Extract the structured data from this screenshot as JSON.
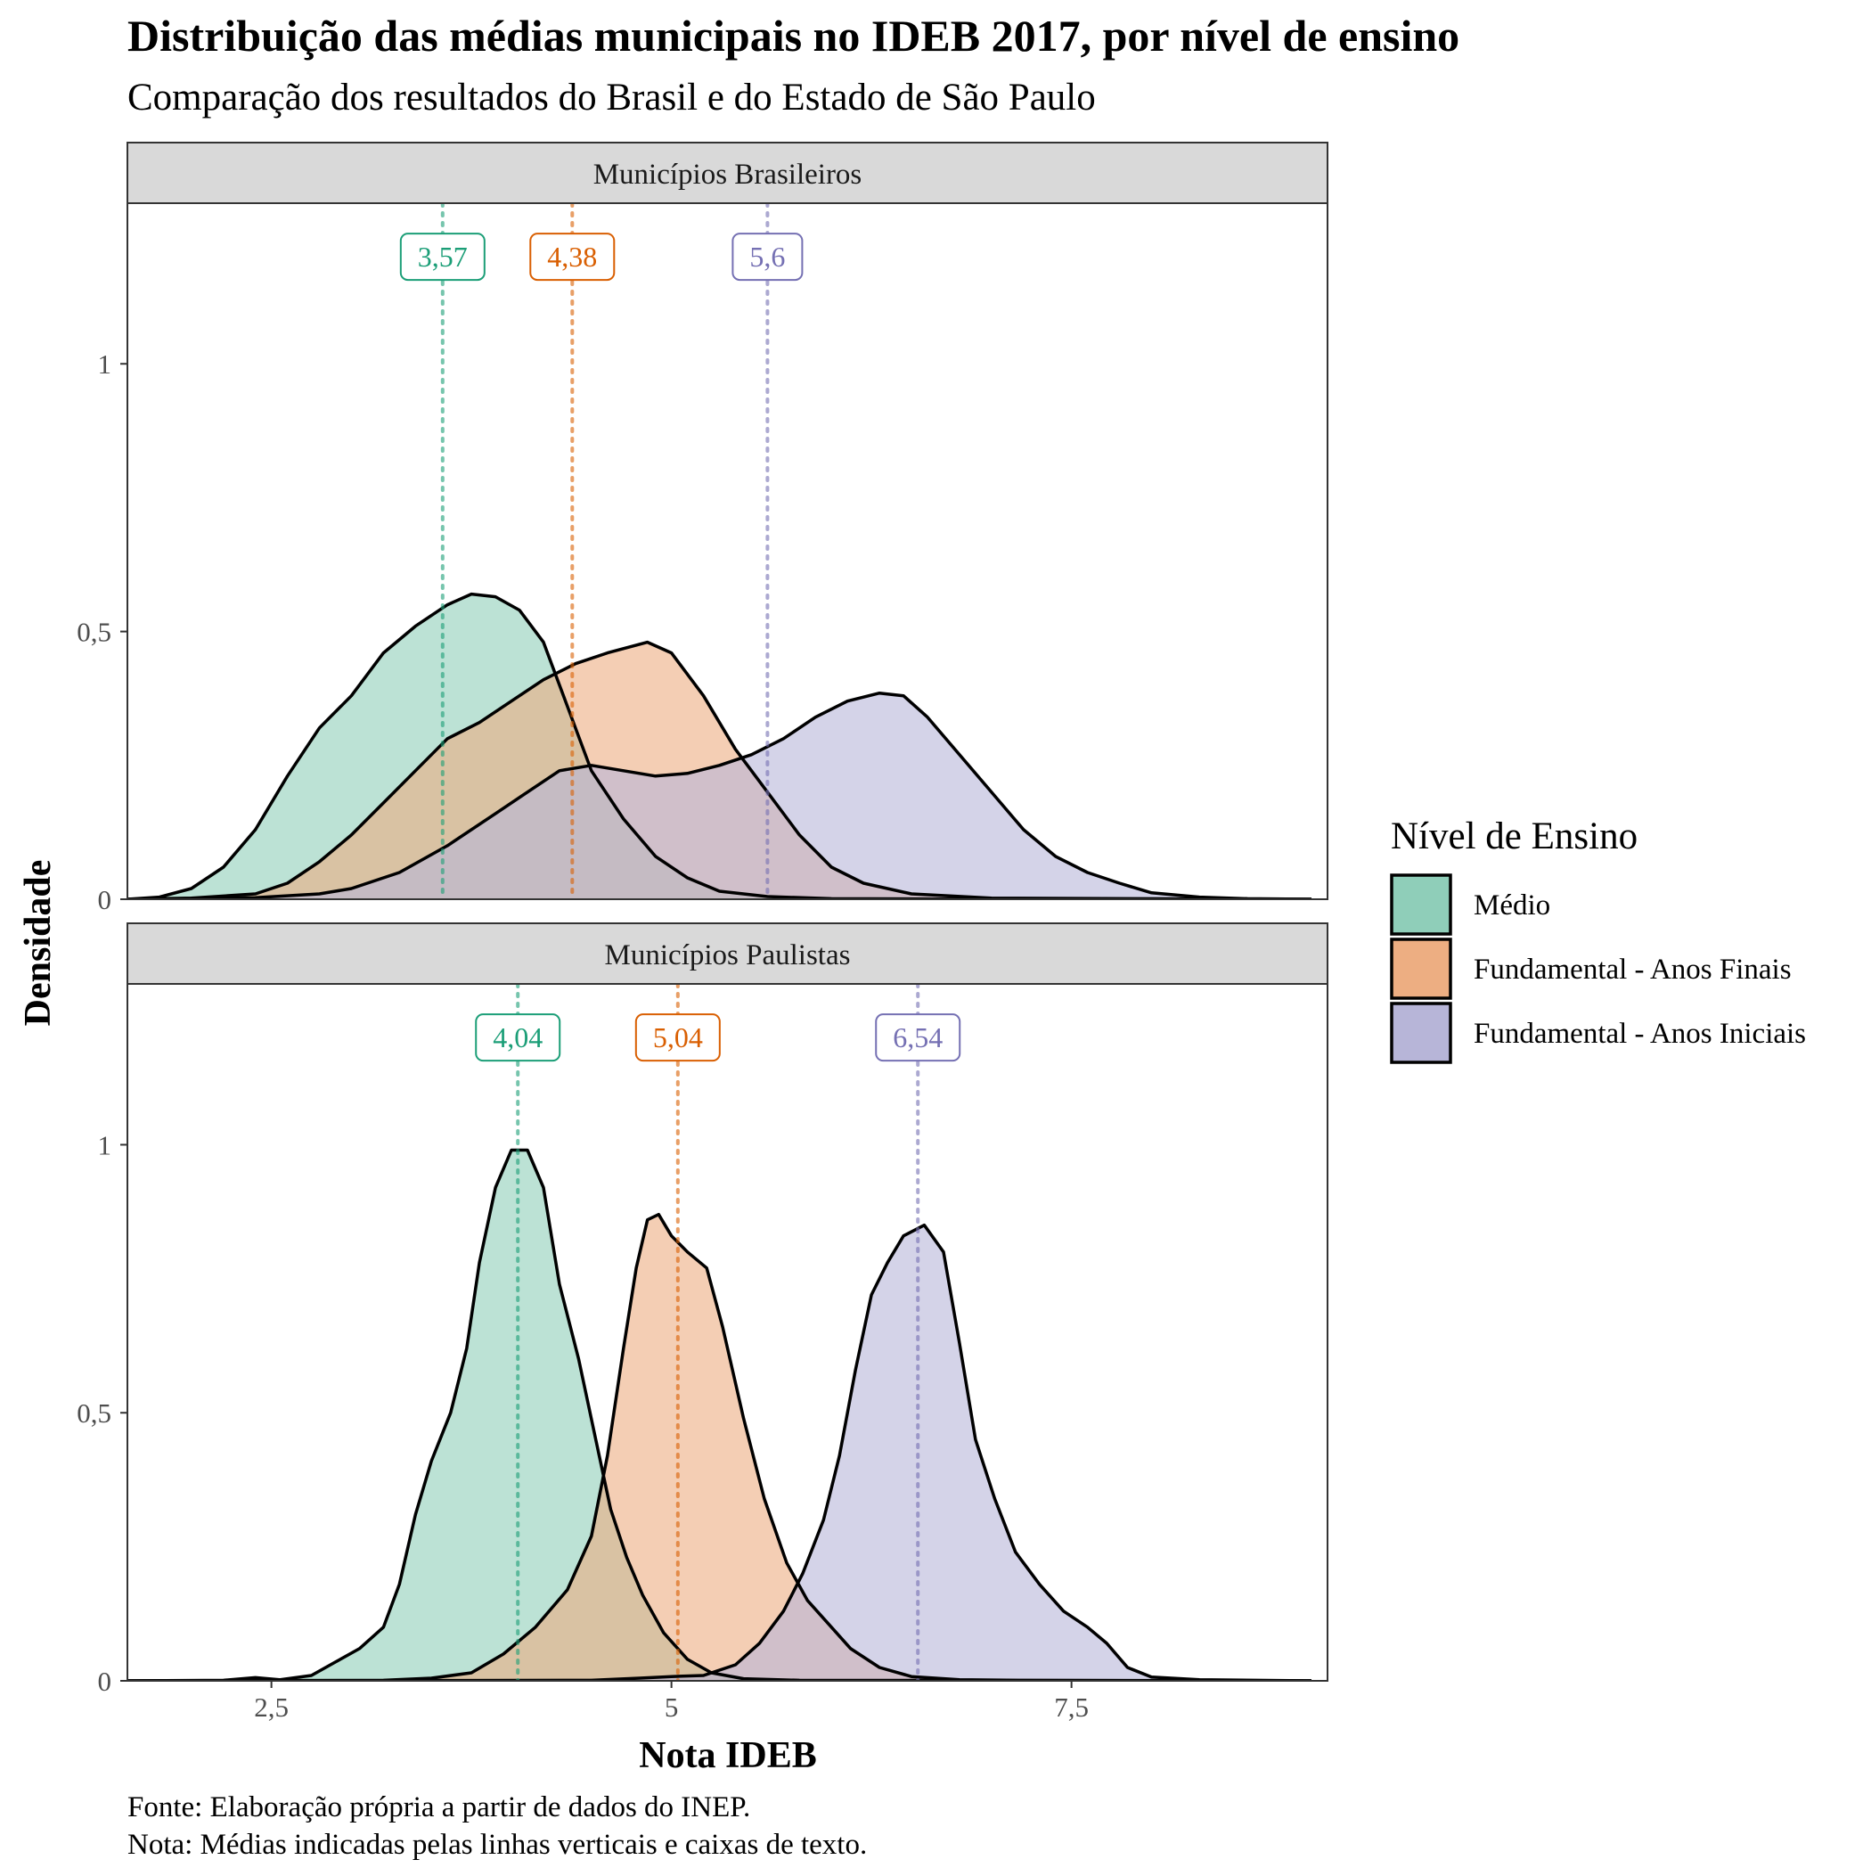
{
  "title": "Distribuição das médias municipais no IDEB 2017, por nível de ensino",
  "subtitle": "Comparação dos resultados do Brasil e do Estado de São Paulo",
  "xlabel": "Nota IDEB",
  "ylabel": "Densidade",
  "caption_lines": [
    "Fonte: Elaboração própria a partir de dados do INEP.",
    "Nota: Médias indicadas pelas linhas verticais e caixas de texto."
  ],
  "legend": {
    "title": "Nível de Ensino",
    "items": [
      {
        "key": "medio",
        "label": "Médio",
        "fill": "#8FCEB9"
      },
      {
        "key": "finais",
        "label": "Fundamental - Anos Finais",
        "fill": "#EDAE82"
      },
      {
        "key": "iniciais",
        "label": "Fundamental - Anos Iniciais",
        "fill": "#B7B5D8"
      }
    ]
  },
  "colors": {
    "medio": "#1B9E77",
    "finais": "#D95F02",
    "iniciais": "#7570B3",
    "overlap_medio_finais": "#B29B5F",
    "overlap_finais_iniciais": "#AF939D",
    "overlap_medio_iniciais": "#8D8C8A",
    "overlap_all": "#8F8185",
    "strip_fill": "#D9D9D9",
    "panel_border": "#333333",
    "axis_text": "#4D4D4D"
  },
  "chart_data": {
    "type": "area",
    "xlim": [
      1.6,
      9.1
    ],
    "ylim": [
      0,
      1.3
    ],
    "x_ticks": [
      2.5,
      5,
      7.5
    ],
    "x_tick_labels": [
      "2,5",
      "5",
      "7,5"
    ],
    "y_ticks": [
      0,
      0.5,
      1
    ],
    "y_tick_labels": [
      "0",
      "0,5",
      "1"
    ],
    "grid": false,
    "legend_position": "right",
    "panels": [
      {
        "strip": "Municípios Brasileiros",
        "series": [
          {
            "key": "medio",
            "name": "Médio",
            "mean": 3.57,
            "mean_label": "3,57",
            "points": [
              [
                1.6,
                0
              ],
              [
                1.8,
                0.004
              ],
              [
                2.0,
                0.02
              ],
              [
                2.2,
                0.06
              ],
              [
                2.4,
                0.13
              ],
              [
                2.6,
                0.23
              ],
              [
                2.8,
                0.32
              ],
              [
                3.0,
                0.38
              ],
              [
                3.2,
                0.46
              ],
              [
                3.4,
                0.51
              ],
              [
                3.6,
                0.55
              ],
              [
                3.75,
                0.57
              ],
              [
                3.9,
                0.565
              ],
              [
                4.05,
                0.54
              ],
              [
                4.2,
                0.48
              ],
              [
                4.35,
                0.36
              ],
              [
                4.5,
                0.24
              ],
              [
                4.7,
                0.15
              ],
              [
                4.9,
                0.08
              ],
              [
                5.1,
                0.04
              ],
              [
                5.3,
                0.015
              ],
              [
                5.6,
                0.005
              ],
              [
                6.0,
                0.001
              ],
              [
                7.0,
                0
              ],
              [
                9.0,
                0
              ]
            ]
          },
          {
            "key": "finais",
            "name": "Fundamental - Anos Finais",
            "mean": 4.38,
            "mean_label": "4,38",
            "points": [
              [
                1.6,
                0
              ],
              [
                2.0,
                0.002
              ],
              [
                2.4,
                0.01
              ],
              [
                2.6,
                0.03
              ],
              [
                2.8,
                0.07
              ],
              [
                3.0,
                0.12
              ],
              [
                3.2,
                0.18
              ],
              [
                3.4,
                0.24
              ],
              [
                3.6,
                0.3
              ],
              [
                3.8,
                0.33
              ],
              [
                4.0,
                0.37
              ],
              [
                4.2,
                0.41
              ],
              [
                4.4,
                0.44
              ],
              [
                4.6,
                0.46
              ],
              [
                4.85,
                0.48
              ],
              [
                5.0,
                0.46
              ],
              [
                5.2,
                0.38
              ],
              [
                5.4,
                0.28
              ],
              [
                5.6,
                0.2
              ],
              [
                5.8,
                0.12
              ],
              [
                6.0,
                0.06
              ],
              [
                6.2,
                0.03
              ],
              [
                6.5,
                0.01
              ],
              [
                7.0,
                0.002
              ],
              [
                9.0,
                0
              ]
            ]
          },
          {
            "key": "iniciais",
            "name": "Fundamental - Anos Iniciais",
            "mean": 5.6,
            "mean_label": "5,6",
            "points": [
              [
                1.6,
                0
              ],
              [
                2.4,
                0.003
              ],
              [
                2.8,
                0.01
              ],
              [
                3.0,
                0.02
              ],
              [
                3.3,
                0.05
              ],
              [
                3.6,
                0.1
              ],
              [
                3.9,
                0.16
              ],
              [
                4.1,
                0.2
              ],
              [
                4.3,
                0.24
              ],
              [
                4.5,
                0.25
              ],
              [
                4.7,
                0.24
              ],
              [
                4.9,
                0.23
              ],
              [
                5.1,
                0.235
              ],
              [
                5.3,
                0.25
              ],
              [
                5.5,
                0.27
              ],
              [
                5.7,
                0.3
              ],
              [
                5.9,
                0.34
              ],
              [
                6.1,
                0.37
              ],
              [
                6.3,
                0.385
              ],
              [
                6.45,
                0.38
              ],
              [
                6.6,
                0.34
              ],
              [
                6.8,
                0.27
              ],
              [
                7.0,
                0.2
              ],
              [
                7.2,
                0.13
              ],
              [
                7.4,
                0.08
              ],
              [
                7.6,
                0.05
              ],
              [
                7.8,
                0.03
              ],
              [
                8.0,
                0.012
              ],
              [
                8.3,
                0.004
              ],
              [
                8.6,
                0.001
              ],
              [
                9.0,
                0
              ]
            ]
          }
        ]
      },
      {
        "strip": "Municípios Paulistas",
        "series": [
          {
            "key": "medio",
            "name": "Médio",
            "mean": 4.04,
            "mean_label": "4,04",
            "points": [
              [
                1.6,
                0
              ],
              [
                2.2,
                0.001
              ],
              [
                2.4,
                0.006
              ],
              [
                2.55,
                0.002
              ],
              [
                2.75,
                0.01
              ],
              [
                2.9,
                0.035
              ],
              [
                3.05,
                0.06
              ],
              [
                3.2,
                0.1
              ],
              [
                3.3,
                0.18
              ],
              [
                3.4,
                0.31
              ],
              [
                3.5,
                0.41
              ],
              [
                3.62,
                0.5
              ],
              [
                3.72,
                0.62
              ],
              [
                3.8,
                0.78
              ],
              [
                3.9,
                0.92
              ],
              [
                4.0,
                0.99
              ],
              [
                4.1,
                0.99
              ],
              [
                4.2,
                0.92
              ],
              [
                4.3,
                0.74
              ],
              [
                4.42,
                0.6
              ],
              [
                4.52,
                0.46
              ],
              [
                4.62,
                0.32
              ],
              [
                4.72,
                0.23
              ],
              [
                4.82,
                0.16
              ],
              [
                4.95,
                0.09
              ],
              [
                5.1,
                0.04
              ],
              [
                5.25,
                0.015
              ],
              [
                5.45,
                0.004
              ],
              [
                5.8,
                0.001
              ],
              [
                9.0,
                0
              ]
            ]
          },
          {
            "key": "finais",
            "name": "Fundamental - Anos Finais",
            "mean": 5.04,
            "mean_label": "5,04",
            "points": [
              [
                1.6,
                0
              ],
              [
                3.2,
                0.001
              ],
              [
                3.5,
                0.005
              ],
              [
                3.75,
                0.015
              ],
              [
                3.95,
                0.05
              ],
              [
                4.15,
                0.1
              ],
              [
                4.35,
                0.17
              ],
              [
                4.5,
                0.27
              ],
              [
                4.6,
                0.42
              ],
              [
                4.7,
                0.62
              ],
              [
                4.78,
                0.77
              ],
              [
                4.85,
                0.86
              ],
              [
                4.92,
                0.87
              ],
              [
                5.0,
                0.83
              ],
              [
                5.1,
                0.8
              ],
              [
                5.22,
                0.77
              ],
              [
                5.32,
                0.66
              ],
              [
                5.45,
                0.49
              ],
              [
                5.58,
                0.34
              ],
              [
                5.72,
                0.22
              ],
              [
                5.85,
                0.15
              ],
              [
                6.0,
                0.1
              ],
              [
                6.12,
                0.06
              ],
              [
                6.3,
                0.025
              ],
              [
                6.5,
                0.008
              ],
              [
                6.8,
                0.002
              ],
              [
                7.2,
                0.001
              ],
              [
                9.0,
                0
              ]
            ]
          },
          {
            "key": "iniciais",
            "name": "Fundamental - Anos Iniciais",
            "mean": 6.54,
            "mean_label": "6,54",
            "points": [
              [
                1.6,
                0
              ],
              [
                4.5,
                0.001
              ],
              [
                4.8,
                0.005
              ],
              [
                5.0,
                0.008
              ],
              [
                5.2,
                0.01
              ],
              [
                5.4,
                0.03
              ],
              [
                5.55,
                0.07
              ],
              [
                5.7,
                0.13
              ],
              [
                5.82,
                0.2
              ],
              [
                5.95,
                0.3
              ],
              [
                6.05,
                0.42
              ],
              [
                6.15,
                0.58
              ],
              [
                6.25,
                0.72
              ],
              [
                6.35,
                0.78
              ],
              [
                6.45,
                0.83
              ],
              [
                6.58,
                0.85
              ],
              [
                6.7,
                0.8
              ],
              [
                6.8,
                0.63
              ],
              [
                6.9,
                0.45
              ],
              [
                7.02,
                0.34
              ],
              [
                7.15,
                0.24
              ],
              [
                7.3,
                0.18
              ],
              [
                7.45,
                0.13
              ],
              [
                7.6,
                0.1
              ],
              [
                7.72,
                0.07
              ],
              [
                7.85,
                0.025
              ],
              [
                8.0,
                0.007
              ],
              [
                8.3,
                0.002
              ],
              [
                9.0,
                0
              ]
            ]
          }
        ]
      }
    ]
  }
}
